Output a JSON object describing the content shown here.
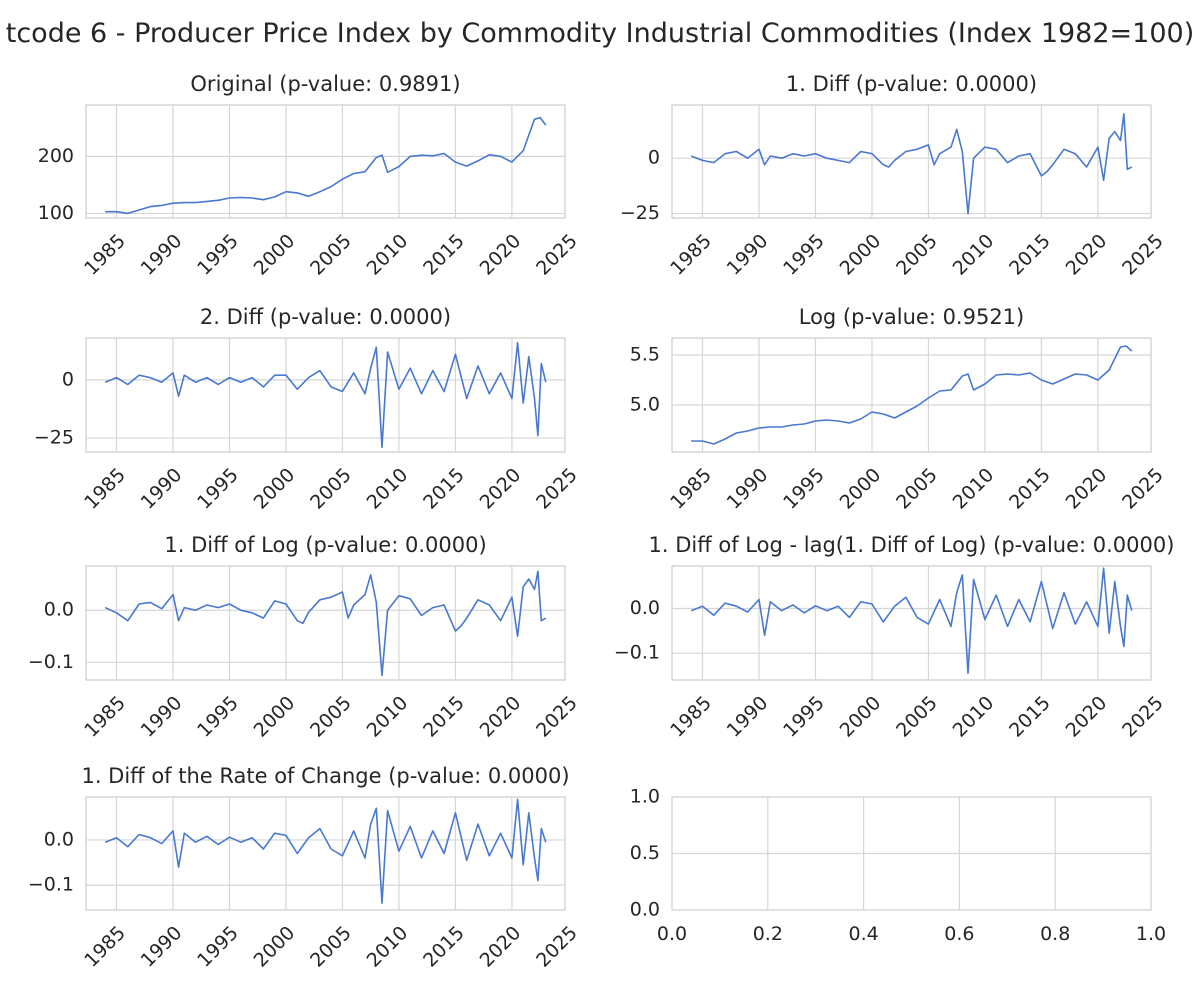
{
  "figure_title": "tcode 6 - Producer Price Index by Commodity Industrial Commodities (Index 1982=100)",
  "colors": {
    "line": "#4878cf",
    "grid": "#d6d6d6",
    "frame": "#cccccc",
    "text": "#262626"
  },
  "chart_data": [
    {
      "type": "line",
      "title": "Original (p-value: 0.9891)",
      "xlabel": "",
      "ylabel": "",
      "xlim": [
        1982.3,
        2024.7
      ],
      "ylim": [
        92,
        290
      ],
      "xticks": [
        1985,
        1990,
        1995,
        2000,
        2005,
        2010,
        2015,
        2020,
        2025
      ],
      "xtick_labels": [
        "1985",
        "1990",
        "1995",
        "2000",
        "2005",
        "2010",
        "2015",
        "2020",
        "2025"
      ],
      "yticks": [
        100,
        200
      ],
      "ytick_labels": [
        "100",
        "200"
      ],
      "grid": true,
      "series": [
        {
          "x": [
            1984,
            1985,
            1986,
            1987,
            1988,
            1989,
            1990,
            1991,
            1992,
            1993,
            1994,
            1995,
            1996,
            1997,
            1998,
            1999,
            2000,
            2001,
            2002,
            2003,
            2004,
            2005,
            2006,
            2007,
            2008,
            2008.5,
            2009,
            2010,
            2011,
            2012,
            2013,
            2014,
            2015,
            2016,
            2017,
            2018,
            2019,
            2020,
            2021,
            2022,
            2022.5,
            2023
          ],
          "y": [
            103,
            103,
            100,
            106,
            112,
            114,
            118,
            119,
            119,
            121,
            123,
            127,
            128,
            127,
            124,
            129,
            138,
            136,
            130,
            138,
            147,
            160,
            170,
            173,
            198,
            202,
            172,
            182,
            200,
            202,
            201,
            205,
            190,
            183,
            192,
            203,
            200,
            190,
            210,
            265,
            268,
            255
          ]
        }
      ]
    },
    {
      "type": "line",
      "title": "1. Diff (p-value: 0.0000)",
      "xlabel": "",
      "ylabel": "",
      "xlim": [
        1982.3,
        2024.7
      ],
      "ylim": [
        -27,
        24
      ],
      "xticks": [
        1985,
        1990,
        1995,
        2000,
        2005,
        2010,
        2015,
        2020,
        2025
      ],
      "xtick_labels": [
        "1985",
        "1990",
        "1995",
        "2000",
        "2005",
        "2010",
        "2015",
        "2020",
        "2025"
      ],
      "yticks": [
        -25,
        0
      ],
      "ytick_labels": [
        "−25",
        "0"
      ],
      "grid": true,
      "series": [
        {
          "x": [
            1984,
            1985,
            1986,
            1987,
            1988,
            1989,
            1990,
            1990.5,
            1991,
            1992,
            1993,
            1994,
            1995,
            1996,
            1997,
            1998,
            1999,
            2000,
            2001,
            2001.5,
            2002,
            2003,
            2004,
            2005,
            2005.5,
            2006,
            2007,
            2007.5,
            2008,
            2008.5,
            2009,
            2010,
            2011,
            2012,
            2013,
            2014,
            2015,
            2015.5,
            2016,
            2017,
            2018,
            2019,
            2020,
            2020.5,
            2021,
            2021.5,
            2022,
            2022.3,
            2022.6,
            2023
          ],
          "y": [
            1,
            -1,
            -2,
            2,
            3,
            0,
            4,
            -3,
            1,
            0,
            2,
            1,
            2,
            0,
            -1,
            -2,
            3,
            2,
            -3,
            -4,
            -1,
            3,
            4,
            6,
            -3,
            2,
            5,
            13,
            3,
            -25,
            0,
            5,
            4,
            -2,
            1,
            2,
            -8,
            -6,
            -3,
            4,
            2,
            -4,
            5,
            -10,
            9,
            12,
            8,
            20,
            -5,
            -4
          ]
        }
      ]
    },
    {
      "type": "line",
      "title": "2. Diff (p-value: 0.0000)",
      "xlabel": "",
      "ylabel": "",
      "xlim": [
        1982.3,
        2024.7
      ],
      "ylim": [
        -31,
        18
      ],
      "xticks": [
        1985,
        1990,
        1995,
        2000,
        2005,
        2010,
        2015,
        2020,
        2025
      ],
      "xtick_labels": [
        "1985",
        "1990",
        "1995",
        "2000",
        "2005",
        "2010",
        "2015",
        "2020",
        "2025"
      ],
      "yticks": [
        -25,
        0
      ],
      "ytick_labels": [
        "−25",
        "0"
      ],
      "grid": true,
      "series": [
        {
          "x": [
            1984,
            1985,
            1986,
            1987,
            1988,
            1989,
            1990,
            1990.5,
            1991,
            1992,
            1993,
            1994,
            1995,
            1996,
            1997,
            1998,
            1999,
            2000,
            2001,
            2002,
            2003,
            2004,
            2005,
            2006,
            2007,
            2007.5,
            2008,
            2008.5,
            2009,
            2010,
            2011,
            2012,
            2013,
            2014,
            2015,
            2016,
            2017,
            2018,
            2019,
            2020,
            2020.5,
            2021,
            2021.5,
            2022,
            2022.3,
            2022.6,
            2023
          ],
          "y": [
            -1,
            1,
            -2,
            2,
            1,
            -1,
            3,
            -7,
            2,
            -1,
            1,
            -2,
            1,
            -1,
            1,
            -3,
            2,
            2,
            -4,
            1,
            4,
            -3,
            -5,
            3,
            -6,
            5,
            14,
            -29,
            12,
            -4,
            5,
            -6,
            4,
            -5,
            11,
            -8,
            6,
            -6,
            3,
            -8,
            16,
            -10,
            10,
            -8,
            -24,
            7,
            -1
          ]
        }
      ]
    },
    {
      "type": "line",
      "title": "Log (p-value: 0.9521)",
      "xlabel": "",
      "ylabel": "",
      "xlim": [
        1982.3,
        2024.7
      ],
      "ylim": [
        4.53,
        5.67
      ],
      "xticks": [
        1985,
        1990,
        1995,
        2000,
        2005,
        2010,
        2015,
        2020,
        2025
      ],
      "xtick_labels": [
        "1985",
        "1990",
        "1995",
        "2000",
        "2005",
        "2010",
        "2015",
        "2020",
        "2025"
      ],
      "yticks": [
        5.0,
        5.5
      ],
      "ytick_labels": [
        "5.0",
        "5.5"
      ],
      "grid": true,
      "series": [
        {
          "x": [
            1984,
            1985,
            1986,
            1987,
            1988,
            1989,
            1990,
            1991,
            1992,
            1993,
            1994,
            1995,
            1996,
            1997,
            1998,
            1999,
            2000,
            2001,
            2002,
            2003,
            2004,
            2005,
            2006,
            2007,
            2008,
            2008.5,
            2009,
            2010,
            2011,
            2012,
            2013,
            2014,
            2015,
            2016,
            2017,
            2018,
            2019,
            2020,
            2021,
            2022,
            2022.5,
            2023
          ],
          "y": [
            4.64,
            4.64,
            4.61,
            4.66,
            4.72,
            4.74,
            4.77,
            4.78,
            4.78,
            4.8,
            4.81,
            4.84,
            4.85,
            4.84,
            4.82,
            4.86,
            4.93,
            4.91,
            4.87,
            4.93,
            4.99,
            5.07,
            5.14,
            5.15,
            5.29,
            5.31,
            5.15,
            5.21,
            5.3,
            5.31,
            5.3,
            5.32,
            5.25,
            5.21,
            5.26,
            5.31,
            5.3,
            5.25,
            5.35,
            5.58,
            5.59,
            5.54
          ]
        }
      ]
    },
    {
      "type": "line",
      "title": "1. Diff of Log (p-value: 0.0000)",
      "xlabel": "",
      "ylabel": "",
      "xlim": [
        1982.3,
        2024.7
      ],
      "ylim": [
        -0.134,
        0.085
      ],
      "xticks": [
        1985,
        1990,
        1995,
        2000,
        2005,
        2010,
        2015,
        2020,
        2025
      ],
      "xtick_labels": [
        "1985",
        "1990",
        "1995",
        "2000",
        "2005",
        "2010",
        "2015",
        "2020",
        "2025"
      ],
      "yticks": [
        -0.1,
        0.0
      ],
      "ytick_labels": [
        "−0.1",
        "0.0"
      ],
      "grid": true,
      "series": [
        {
          "x": [
            1984,
            1985,
            1986,
            1987,
            1988,
            1989,
            1990,
            1990.5,
            1991,
            1992,
            1993,
            1994,
            1995,
            1996,
            1997,
            1998,
            1999,
            2000,
            2001,
            2001.5,
            2002,
            2003,
            2004,
            2005,
            2005.5,
            2006,
            2007,
            2007.5,
            2008,
            2008.5,
            2009,
            2010,
            2011,
            2012,
            2013,
            2014,
            2015,
            2015.5,
            2016,
            2017,
            2018,
            2019,
            2020,
            2020.5,
            2021,
            2021.5,
            2022,
            2022.3,
            2022.6,
            2023
          ],
          "y": [
            0.005,
            -0.005,
            -0.02,
            0.012,
            0.015,
            0.003,
            0.03,
            -0.02,
            0.005,
            0.0,
            0.01,
            0.005,
            0.012,
            0.0,
            -0.005,
            -0.015,
            0.018,
            0.012,
            -0.02,
            -0.025,
            -0.004,
            0.02,
            0.025,
            0.035,
            -0.015,
            0.01,
            0.03,
            0.068,
            0.015,
            -0.125,
            0.0,
            0.028,
            0.022,
            -0.01,
            0.005,
            0.01,
            -0.04,
            -0.03,
            -0.015,
            0.02,
            0.01,
            -0.02,
            0.025,
            -0.05,
            0.045,
            0.06,
            0.04,
            0.075,
            -0.02,
            -0.015
          ]
        }
      ]
    },
    {
      "type": "line",
      "title": "1. Diff of Log - lag(1. Diff of Log) (p-value: 0.0000)",
      "xlabel": "",
      "ylabel": "",
      "xlim": [
        1982.3,
        2024.7
      ],
      "ylim": [
        -0.16,
        0.095
      ],
      "xticks": [
        1985,
        1990,
        1995,
        2000,
        2005,
        2010,
        2015,
        2020,
        2025
      ],
      "xtick_labels": [
        "1985",
        "1990",
        "1995",
        "2000",
        "2005",
        "2010",
        "2015",
        "2020",
        "2025"
      ],
      "yticks": [
        -0.1,
        0.0
      ],
      "ytick_labels": [
        "−0.1",
        "0.0"
      ],
      "grid": true,
      "series": [
        {
          "x": [
            1984,
            1985,
            1986,
            1987,
            1988,
            1989,
            1990,
            1990.5,
            1991,
            1992,
            1993,
            1994,
            1995,
            1996,
            1997,
            1998,
            1999,
            2000,
            2001,
            2002,
            2003,
            2004,
            2005,
            2006,
            2007,
            2007.5,
            2008,
            2008.5,
            2009,
            2010,
            2011,
            2012,
            2013,
            2014,
            2015,
            2016,
            2017,
            2018,
            2019,
            2020,
            2020.5,
            2021,
            2021.5,
            2022,
            2022.3,
            2022.6,
            2023
          ],
          "y": [
            -0.005,
            0.005,
            -0.015,
            0.012,
            0.005,
            -0.008,
            0.02,
            -0.06,
            0.015,
            -0.005,
            0.008,
            -0.01,
            0.006,
            -0.005,
            0.005,
            -0.02,
            0.015,
            0.01,
            -0.03,
            0.005,
            0.025,
            -0.02,
            -0.035,
            0.02,
            -0.04,
            0.035,
            0.075,
            -0.145,
            0.065,
            -0.025,
            0.03,
            -0.04,
            0.02,
            -0.03,
            0.06,
            -0.045,
            0.035,
            -0.035,
            0.015,
            -0.04,
            0.09,
            -0.055,
            0.06,
            -0.04,
            -0.085,
            0.03,
            -0.005
          ]
        }
      ]
    },
    {
      "type": "line",
      "title": "1. Diff of the Rate of Change (p-value: 0.0000)",
      "xlabel": "",
      "ylabel": "",
      "xlim": [
        1982.3,
        2024.7
      ],
      "ylim": [
        -0.155,
        0.095
      ],
      "xticks": [
        1985,
        1990,
        1995,
        2000,
        2005,
        2010,
        2015,
        2020,
        2025
      ],
      "xtick_labels": [
        "1985",
        "1990",
        "1995",
        "2000",
        "2005",
        "2010",
        "2015",
        "2020",
        "2025"
      ],
      "yticks": [
        -0.1,
        0.0
      ],
      "ytick_labels": [
        "−0.1",
        "0.0"
      ],
      "grid": true,
      "series": [
        {
          "x": [
            1984,
            1985,
            1986,
            1987,
            1988,
            1989,
            1990,
            1990.5,
            1991,
            1992,
            1993,
            1994,
            1995,
            1996,
            1997,
            1998,
            1999,
            2000,
            2001,
            2002,
            2003,
            2004,
            2005,
            2006,
            2007,
            2007.5,
            2008,
            2008.5,
            2009,
            2010,
            2011,
            2012,
            2013,
            2014,
            2015,
            2016,
            2017,
            2018,
            2019,
            2020,
            2020.5,
            2021,
            2021.5,
            2022,
            2022.3,
            2022.6,
            2023
          ],
          "y": [
            -0.005,
            0.005,
            -0.015,
            0.012,
            0.005,
            -0.008,
            0.02,
            -0.06,
            0.015,
            -0.005,
            0.008,
            -0.01,
            0.006,
            -0.005,
            0.005,
            -0.02,
            0.015,
            0.01,
            -0.03,
            0.005,
            0.025,
            -0.02,
            -0.035,
            0.02,
            -0.04,
            0.035,
            0.07,
            -0.14,
            0.065,
            -0.025,
            0.03,
            -0.04,
            0.02,
            -0.03,
            0.06,
            -0.045,
            0.035,
            -0.035,
            0.015,
            -0.04,
            0.09,
            -0.055,
            0.06,
            -0.04,
            -0.09,
            0.025,
            -0.005
          ]
        }
      ]
    },
    {
      "type": "line",
      "title": "",
      "xlabel": "",
      "ylabel": "",
      "xlim": [
        0,
        1
      ],
      "ylim": [
        0,
        1
      ],
      "xticks": [
        0,
        0.2,
        0.4,
        0.6,
        0.8,
        1.0
      ],
      "xtick_labels": [
        "0.0",
        "0.2",
        "0.4",
        "0.6",
        "0.8",
        "1.0"
      ],
      "yticks": [
        0,
        0.5,
        1.0
      ],
      "ytick_labels": [
        "0.0",
        "0.5",
        "1.0"
      ],
      "grid": true,
      "series": []
    }
  ]
}
